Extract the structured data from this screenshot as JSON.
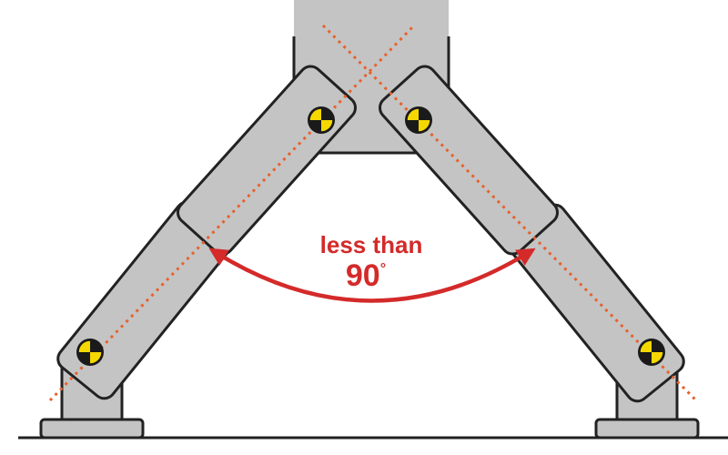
{
  "annotation": {
    "line1": "less than",
    "line2": "90",
    "degree": "°"
  },
  "icons": [
    "crash-test-target-icon"
  ],
  "colors": {
    "arm_fill": "#c4c4c4",
    "arm_stroke": "#222222",
    "arrow": "#d42a2a",
    "guide_line": "#e8612c",
    "target_yellow": "#f5d800",
    "target_black": "#1a1a1a",
    "ground": "#222222"
  }
}
